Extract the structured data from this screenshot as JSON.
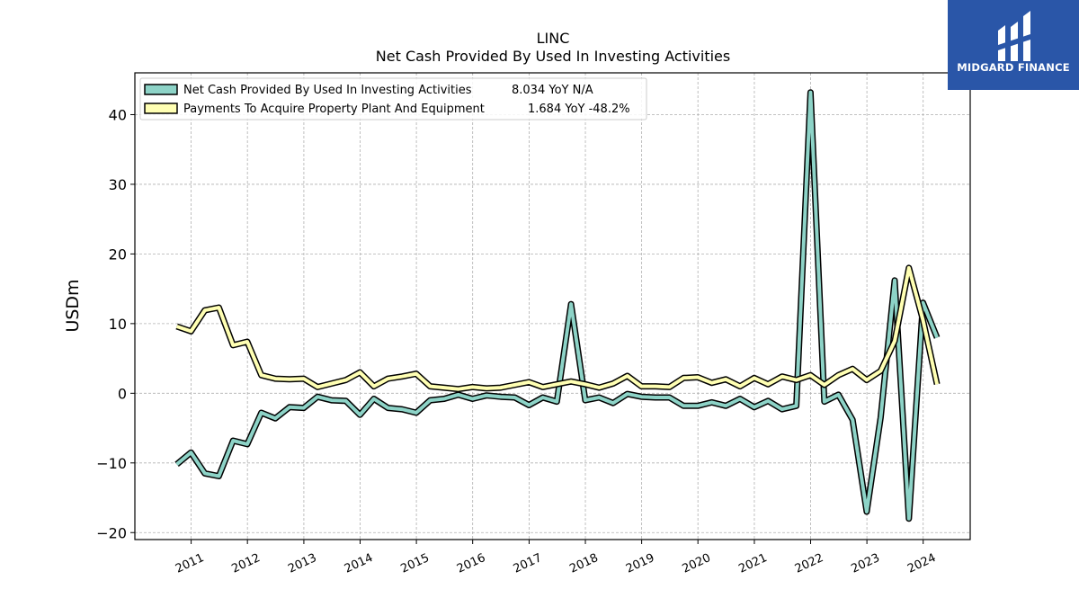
{
  "brand": {
    "name": "MIDGARD FINANCE",
    "color": "#2a56a8"
  },
  "chart_data": {
    "type": "line",
    "title": "LINC",
    "subtitle": "Net Cash Provided By Used In Investing Activities",
    "ylabel": "USDm",
    "xlabel": "",
    "ylim": [
      -21,
      46
    ],
    "yticks": [
      -20,
      -10,
      0,
      10,
      20,
      30,
      40
    ],
    "xticks": [
      "2011",
      "2012",
      "2013",
      "2014",
      "2015",
      "2016",
      "2017",
      "2018",
      "2019",
      "2020",
      "2021",
      "2022",
      "2023",
      "2024"
    ],
    "grid": true,
    "legend_position": "top-left",
    "x": [
      "2010-09-30",
      "2010-12-31",
      "2011-03-31",
      "2011-06-30",
      "2011-09-30",
      "2011-12-31",
      "2012-03-31",
      "2012-06-30",
      "2012-09-30",
      "2012-12-31",
      "2013-03-31",
      "2013-06-30",
      "2013-09-30",
      "2013-12-31",
      "2014-03-31",
      "2014-06-30",
      "2014-09-30",
      "2014-12-31",
      "2015-03-31",
      "2015-06-30",
      "2015-09-30",
      "2015-12-31",
      "2016-03-31",
      "2016-06-30",
      "2016-09-30",
      "2016-12-31",
      "2017-03-31",
      "2017-06-30",
      "2017-09-30",
      "2017-12-31",
      "2018-03-31",
      "2018-06-30",
      "2018-09-30",
      "2018-12-31",
      "2019-03-31",
      "2019-06-30",
      "2019-09-30",
      "2019-12-31",
      "2020-03-31",
      "2020-06-30",
      "2020-09-30",
      "2020-12-31",
      "2021-03-31",
      "2021-06-30",
      "2021-09-30",
      "2021-12-31",
      "2022-03-31",
      "2022-06-30",
      "2022-09-30",
      "2022-12-31",
      "2023-03-31",
      "2023-06-30",
      "2023-09-30",
      "2023-12-31",
      "2024-03-31"
    ],
    "series": [
      {
        "name": "Net Cash Provided By Used In Investing Activities",
        "legend_suffix": "8.034 YoY N/A",
        "color": "#8dd3c7",
        "values": [
          -10.2,
          -8.5,
          -11.5,
          -11.9,
          -6.8,
          -7.3,
          -2.8,
          -3.6,
          -2.0,
          -2.1,
          -0.5,
          -1.0,
          -1.1,
          -3.1,
          -0.8,
          -2.1,
          -2.3,
          -2.8,
          -1.0,
          -0.8,
          -0.2,
          -0.8,
          -0.3,
          -0.5,
          -0.6,
          -1.7,
          -0.6,
          -1.2,
          12.8,
          -1.0,
          -0.6,
          -1.4,
          -0.1,
          -0.5,
          -0.6,
          -0.6,
          -1.8,
          -1.8,
          -1.3,
          -1.8,
          -0.8,
          -2.0,
          -1.1,
          -2.3,
          -1.8,
          43.2,
          -1.2,
          -0.2,
          -3.8,
          -17.0,
          -3.5,
          16.2,
          -18.0,
          13.0,
          8.0
        ]
      },
      {
        "name": "Payments To Acquire Property Plant And Equipment",
        "legend_suffix": "1.684 YoY -48.2%",
        "color": "#ffffb3",
        "values": [
          9.6,
          8.9,
          11.9,
          12.3,
          6.9,
          7.4,
          2.6,
          2.1,
          2.0,
          2.1,
          0.9,
          1.4,
          1.9,
          3.0,
          1.0,
          2.1,
          2.4,
          2.8,
          1.0,
          0.8,
          0.6,
          0.9,
          0.7,
          0.8,
          1.2,
          1.6,
          0.9,
          1.3,
          1.7,
          1.3,
          0.8,
          1.4,
          2.5,
          1.0,
          1.0,
          0.9,
          2.2,
          2.3,
          1.5,
          2.0,
          1.0,
          2.2,
          1.3,
          2.4,
          1.9,
          2.6,
          1.2,
          2.6,
          3.5,
          1.9,
          3.2,
          7.5,
          18.0,
          10.5,
          1.3
        ]
      }
    ]
  }
}
